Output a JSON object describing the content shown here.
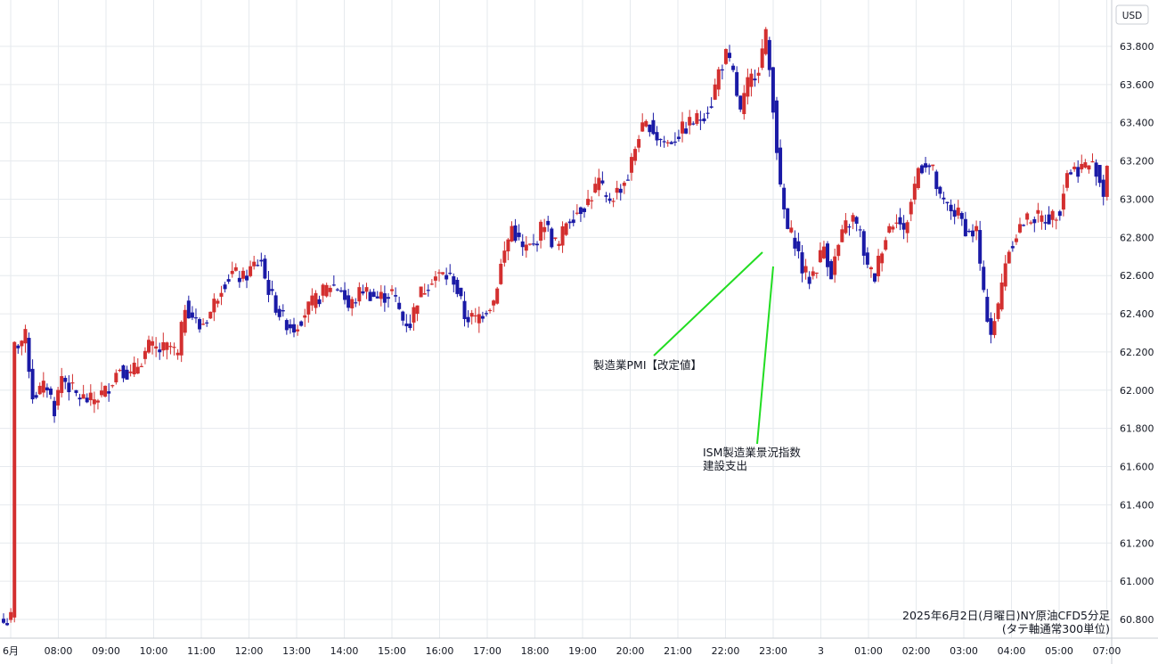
{
  "chart_data": {
    "type": "candlestick",
    "currency_label": "USD",
    "caption_line1": "2025年6月2日(月曜日)NY原油CFD5分足",
    "caption_line2": "(タテ軸通常300単位)",
    "ylim": [
      60.7,
      63.95
    ],
    "y_ticks": [
      "63.800",
      "63.600",
      "63.400",
      "63.200",
      "63.000",
      "62.800",
      "62.600",
      "62.400",
      "62.200",
      "62.000",
      "61.800",
      "61.600",
      "61.400",
      "61.200",
      "61.000",
      "60.800"
    ],
    "x_ticks": [
      "6月",
      "08:00",
      "09:00",
      "10:00",
      "11:00",
      "12:00",
      "13:00",
      "14:00",
      "15:00",
      "16:00",
      "17:00",
      "18:00",
      "19:00",
      "20:00",
      "21:00",
      "22:00",
      "23:00",
      "3",
      "01:00",
      "02:00",
      "03:00",
      "04:00",
      "05:00",
      "07:00"
    ],
    "annotations": [
      {
        "lines": [
          "製造業PMI【改定値】"
        ]
      },
      {
        "lines": [
          "ISM製造業景況指数",
          "建設支出"
        ]
      }
    ],
    "colors": {
      "up": "#d32f2f",
      "down": "#1a1aa6",
      "annotation_line": "#22dd22",
      "grid": "#e6eaee"
    },
    "close_path": [
      [
        0,
        60.78
      ],
      [
        2,
        60.8
      ],
      [
        3,
        62.2
      ],
      [
        6,
        62.25
      ],
      [
        8,
        61.95
      ],
      [
        12,
        62.0
      ],
      [
        14,
        61.88
      ],
      [
        16,
        62.05
      ],
      [
        20,
        61.95
      ],
      [
        24,
        61.92
      ],
      [
        28,
        61.97
      ],
      [
        32,
        62.1
      ],
      [
        35,
        62.05
      ],
      [
        40,
        62.2
      ],
      [
        43,
        62.18
      ],
      [
        46,
        62.2
      ],
      [
        48,
        62.15
      ],
      [
        50,
        62.42
      ],
      [
        54,
        62.3
      ],
      [
        57,
        62.38
      ],
      [
        60,
        62.52
      ],
      [
        63,
        62.58
      ],
      [
        66,
        62.55
      ],
      [
        69,
        62.62
      ],
      [
        71,
        62.65
      ],
      [
        72,
        62.55
      ],
      [
        74,
        62.45
      ],
      [
        77,
        62.34
      ],
      [
        80,
        62.3
      ],
      [
        83,
        62.38
      ],
      [
        86,
        62.44
      ],
      [
        90,
        62.52
      ],
      [
        93,
        62.5
      ],
      [
        95,
        62.4
      ],
      [
        99,
        62.5
      ],
      [
        103,
        62.45
      ],
      [
        107,
        62.48
      ],
      [
        110,
        62.34
      ],
      [
        112,
        62.32
      ],
      [
        114,
        62.45
      ],
      [
        118,
        62.56
      ],
      [
        121,
        62.57
      ],
      [
        124,
        62.55
      ],
      [
        127,
        62.36
      ],
      [
        130,
        62.34
      ],
      [
        133,
        62.4
      ],
      [
        135,
        62.44
      ],
      [
        137,
        62.62
      ],
      [
        140,
        62.82
      ],
      [
        143,
        62.7
      ],
      [
        146,
        62.72
      ],
      [
        149,
        62.85
      ],
      [
        151,
        62.75
      ],
      [
        153,
        62.72
      ],
      [
        155,
        62.85
      ],
      [
        158,
        62.9
      ],
      [
        161,
        62.95
      ],
      [
        164,
        63.05
      ],
      [
        166,
        62.95
      ],
      [
        169,
        63.0
      ],
      [
        172,
        63.08
      ],
      [
        175,
        63.3
      ],
      [
        178,
        63.35
      ],
      [
        180,
        63.28
      ],
      [
        183,
        63.25
      ],
      [
        186,
        63.3
      ],
      [
        189,
        63.35
      ],
      [
        192,
        63.38
      ],
      [
        195,
        63.46
      ],
      [
        197,
        63.62
      ],
      [
        199,
        63.7
      ],
      [
        201,
        63.6
      ],
      [
        203,
        63.4
      ],
      [
        205,
        63.55
      ],
      [
        208,
        63.65
      ],
      [
        210,
        63.8
      ],
      [
        212,
        63.45
      ],
      [
        214,
        63.0
      ],
      [
        216,
        62.8
      ],
      [
        218,
        62.75
      ],
      [
        220,
        62.6
      ],
      [
        222,
        62.55
      ],
      [
        224,
        62.62
      ],
      [
        226,
        62.72
      ],
      [
        228,
        62.58
      ],
      [
        230,
        62.72
      ],
      [
        232,
        62.82
      ],
      [
        234,
        62.86
      ],
      [
        236,
        62.78
      ],
      [
        238,
        62.6
      ],
      [
        240,
        62.56
      ],
      [
        242,
        62.72
      ],
      [
        244,
        62.82
      ],
      [
        246,
        62.88
      ],
      [
        248,
        62.78
      ],
      [
        250,
        62.95
      ],
      [
        252,
        63.12
      ],
      [
        254,
        63.15
      ],
      [
        256,
        63.1
      ],
      [
        258,
        62.95
      ],
      [
        260,
        62.92
      ],
      [
        263,
        62.88
      ],
      [
        266,
        62.78
      ],
      [
        268,
        62.8
      ],
      [
        270,
        62.45
      ],
      [
        272,
        62.28
      ],
      [
        274,
        62.4
      ],
      [
        276,
        62.65
      ],
      [
        278,
        62.75
      ],
      [
        280,
        62.82
      ],
      [
        283,
        62.87
      ],
      [
        286,
        62.86
      ],
      [
        289,
        62.87
      ],
      [
        291,
        62.92
      ],
      [
        293,
        63.1
      ],
      [
        296,
        63.12
      ],
      [
        299,
        63.14
      ],
      [
        301,
        63.12
      ],
      [
        303,
        62.99
      ],
      [
        304,
        63.15
      ]
    ]
  }
}
